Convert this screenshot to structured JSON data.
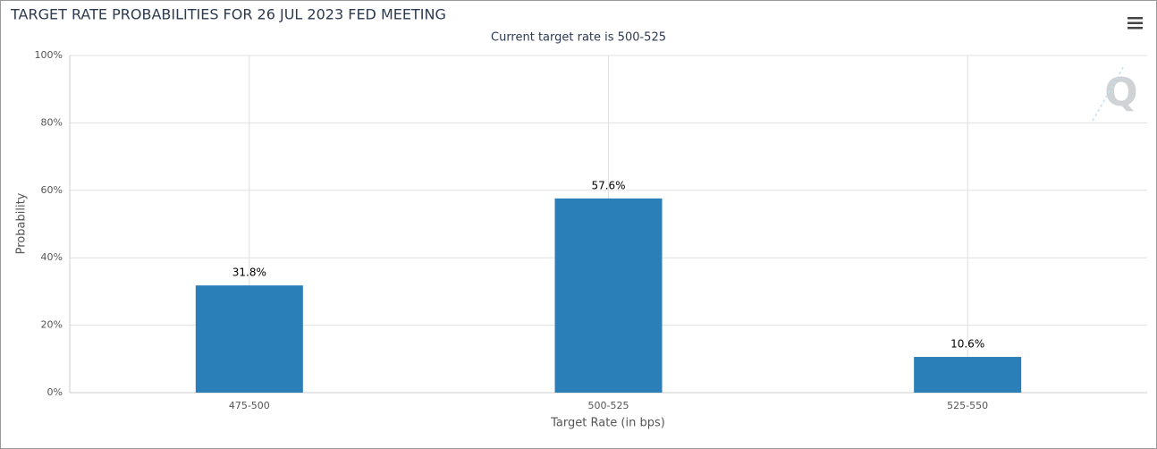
{
  "chart_data": {
    "type": "bar",
    "title": "TARGET RATE PROBABILITIES FOR 26 JUL 2023 FED MEETING",
    "subtitle": "Current target rate is 500-525",
    "x_label": "Target Rate (in bps)",
    "y_label": "Probability",
    "categories": [
      "475-500",
      "500-525",
      "525-550"
    ],
    "values": [
      31.8,
      57.6,
      10.6
    ],
    "value_labels": [
      "31.8%",
      "57.6%",
      "10.6%"
    ],
    "color": "#2b7fb8",
    "ylim": [
      0,
      100
    ],
    "yticks": [
      {
        "value": 0,
        "label": "0%"
      },
      {
        "value": 20,
        "label": "20%"
      },
      {
        "value": 40,
        "label": "40%"
      },
      {
        "value": 60,
        "label": "60%"
      },
      {
        "value": 80,
        "label": "80%"
      },
      {
        "value": 100,
        "label": "100%"
      }
    ],
    "grid": true
  }
}
